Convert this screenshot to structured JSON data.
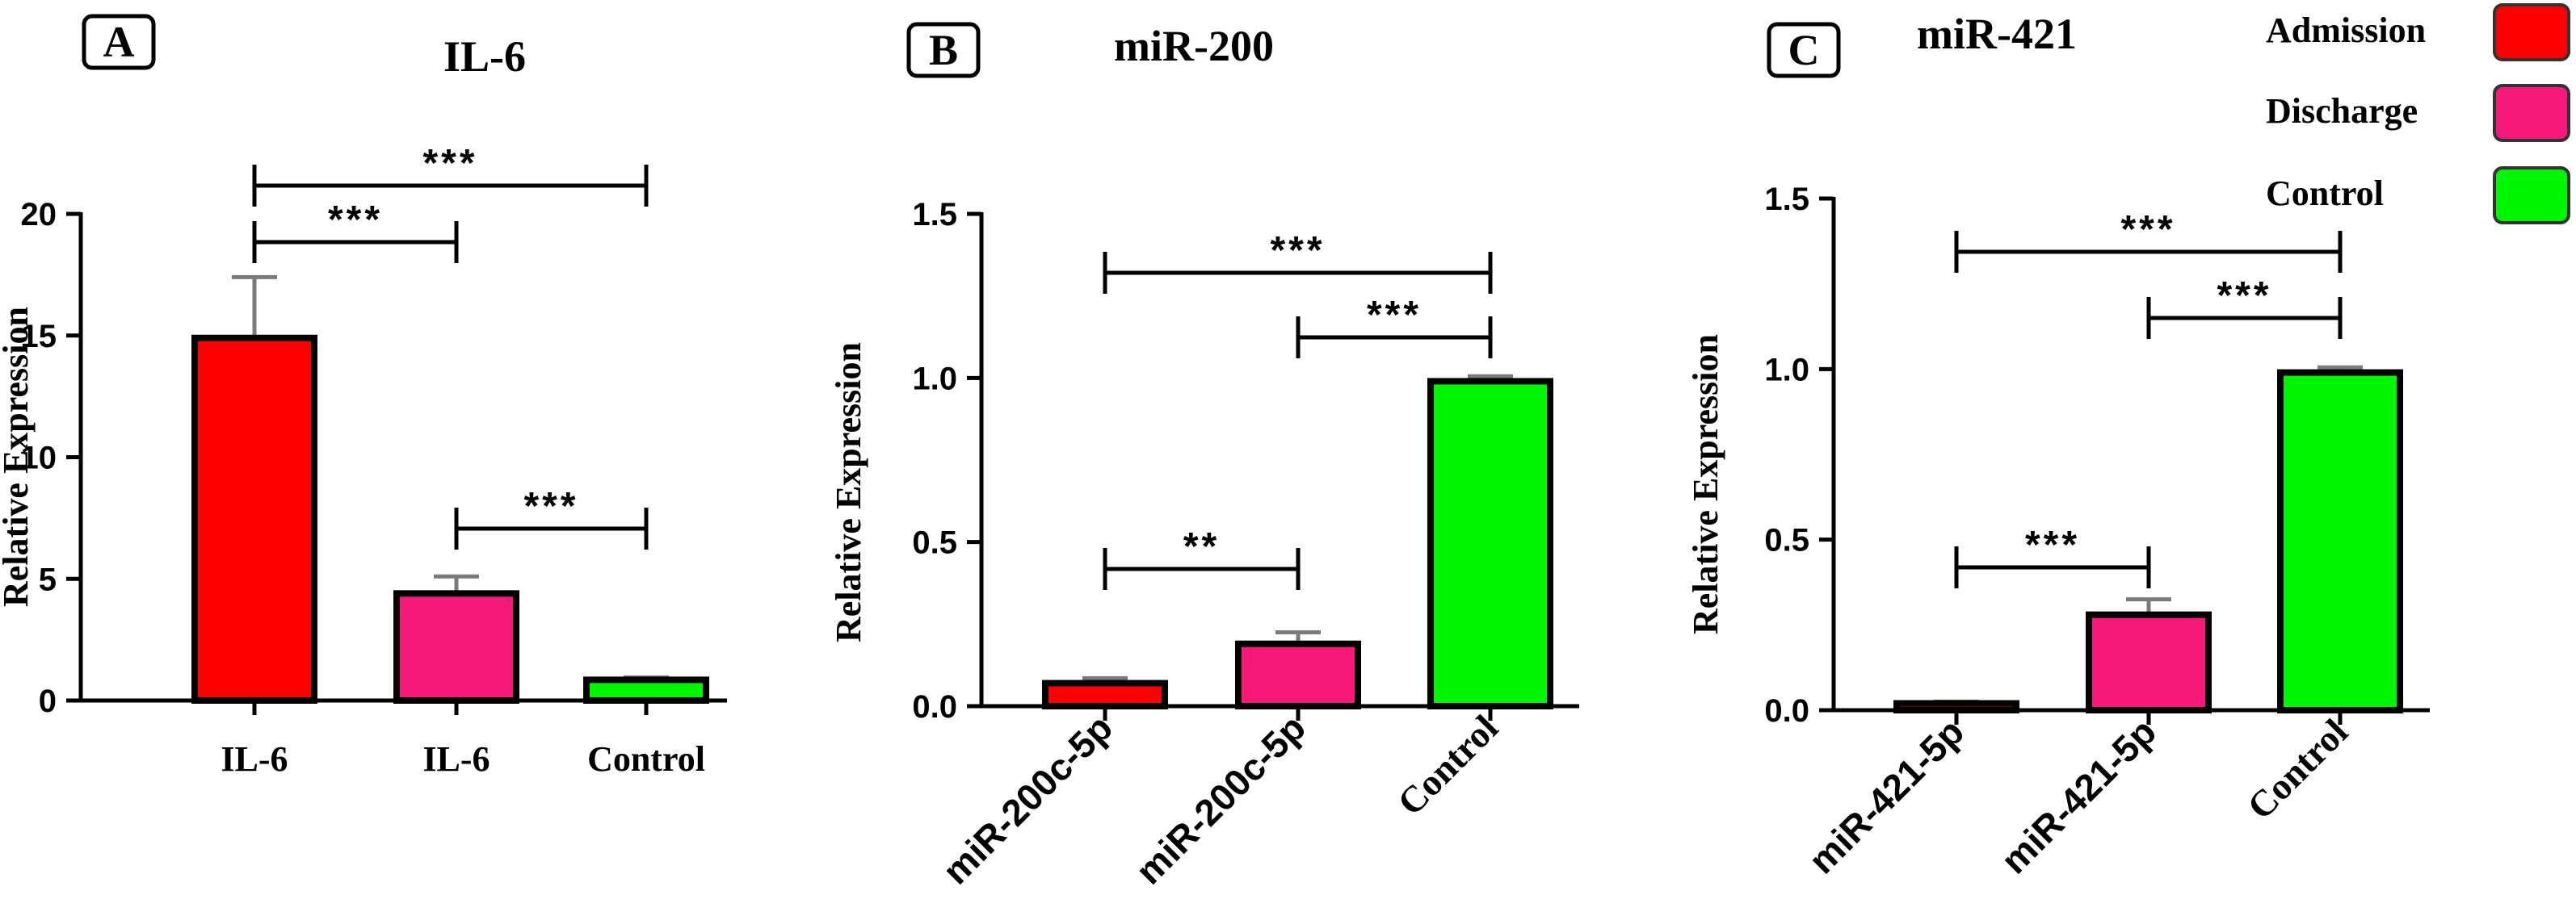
{
  "legend": {
    "position": "top-right",
    "items": [
      {
        "label": "Admission",
        "color": "#ff0000"
      },
      {
        "label": "Discharge",
        "color": "#f7197a"
      },
      {
        "label": "Control",
        "color": "#00f500"
      }
    ]
  },
  "chart_data": [
    {
      "type": "bar",
      "panel_label": "A",
      "title": "IL-6",
      "ylabel": "Relative Expression",
      "xlabel": "",
      "categories": [
        "IL-6",
        "IL-6",
        "Control"
      ],
      "values": [
        14.9,
        4.4,
        0.85
      ],
      "errors": [
        2.5,
        0.7,
        0.1
      ],
      "ylim": [
        0,
        20
      ],
      "yticks": [
        "0",
        "5",
        "10",
        "15",
        "20"
      ],
      "ytick_values": [
        0,
        5,
        10,
        15,
        20
      ],
      "tick_rotation": 0,
      "colors": [
        "#ff0000",
        "#f7197a",
        "#00f500"
      ],
      "significance": [
        {
          "from": 0,
          "to": 2,
          "label": "***"
        },
        {
          "from": 0,
          "to": 1,
          "label": "***"
        },
        {
          "from": 1,
          "to": 2,
          "label": "***"
        }
      ]
    },
    {
      "type": "bar",
      "panel_label": "B",
      "title": "miR-200",
      "ylabel": "Relative Expression",
      "xlabel": "",
      "categories": [
        "miR-200c-5p",
        "miR-200c-5p",
        "Control"
      ],
      "values": [
        0.07,
        0.19,
        0.99
      ],
      "errors": [
        0.015,
        0.035,
        0.015
      ],
      "ylim": [
        0,
        1.5
      ],
      "yticks": [
        "0.0",
        "0.5",
        "1.0",
        "1.5"
      ],
      "ytick_values": [
        0,
        0.5,
        1.0,
        1.5
      ],
      "tick_rotation": -45,
      "colors": [
        "#ff0000",
        "#f7197a",
        "#00f500"
      ],
      "significance": [
        {
          "from": 0,
          "to": 2,
          "label": "***"
        },
        {
          "from": 1,
          "to": 2,
          "label": "***"
        },
        {
          "from": 0,
          "to": 1,
          "label": "**"
        }
      ]
    },
    {
      "type": "bar",
      "panel_label": "C",
      "title": "miR-421",
      "ylabel": "Relative Expression",
      "xlabel": "",
      "categories": [
        "miR-421-5p",
        "miR-421-5p",
        "Control"
      ],
      "values": [
        0.02,
        0.28,
        0.99
      ],
      "errors": [
        0.005,
        0.045,
        0.015
      ],
      "ylim": [
        0,
        1.5
      ],
      "yticks": [
        "0.0",
        "0.5",
        "1.0",
        "1.5"
      ],
      "ytick_values": [
        0,
        0.5,
        1.0,
        1.5
      ],
      "tick_rotation": -45,
      "colors": [
        "#ff0000",
        "#f7197a",
        "#00f500"
      ],
      "significance": [
        {
          "from": 0,
          "to": 2,
          "label": "***"
        },
        {
          "from": 1,
          "to": 2,
          "label": "***"
        },
        {
          "from": 0,
          "to": 1,
          "label": "***"
        }
      ]
    }
  ]
}
